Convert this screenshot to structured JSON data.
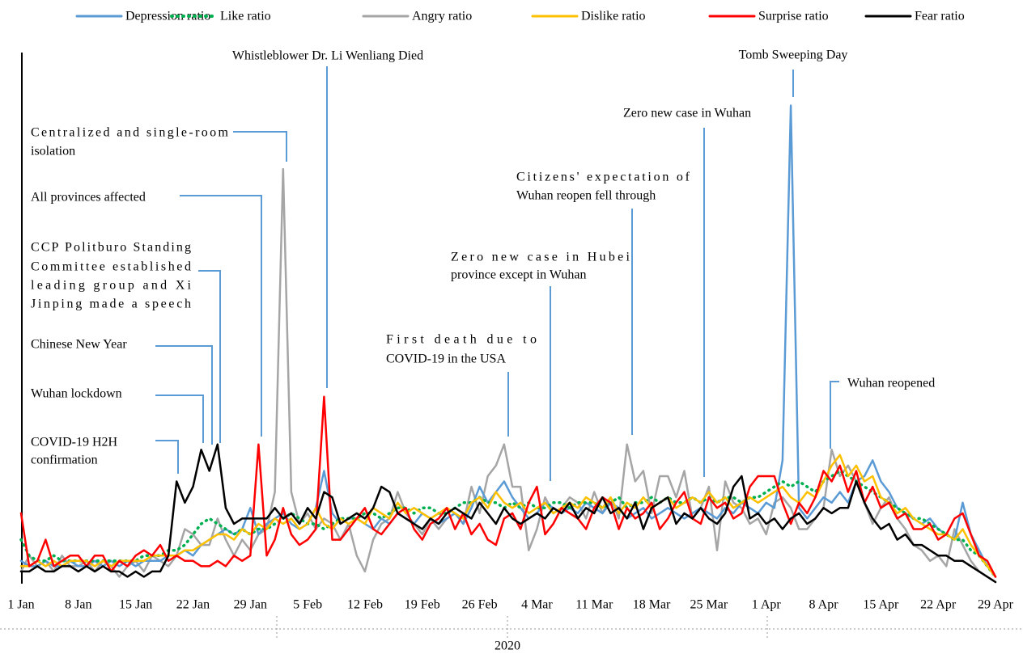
{
  "chart_data": {
    "type": "line",
    "xlabel": "2020",
    "x": [
      0,
      1,
      2,
      3,
      4,
      5,
      6,
      7,
      8,
      9,
      10,
      11,
      12,
      13,
      14,
      15,
      16,
      17,
      18,
      19,
      20,
      21,
      22,
      23,
      24,
      25,
      26,
      27,
      28,
      29,
      30,
      31,
      32,
      33,
      34,
      35,
      36,
      37,
      38,
      39,
      40,
      41,
      42,
      43,
      44,
      45,
      46,
      47,
      48,
      49,
      50,
      51,
      52,
      53,
      54,
      55,
      56,
      57,
      58,
      59,
      60,
      61,
      62,
      63,
      64,
      65,
      66,
      67,
      68,
      69,
      70,
      71,
      72,
      73,
      74,
      75,
      76,
      77,
      78,
      79,
      80,
      81,
      82,
      83,
      84,
      85,
      86,
      87,
      88,
      89,
      90,
      91,
      92,
      93,
      94,
      95,
      96,
      97,
      98,
      99,
      100,
      101,
      102,
      103,
      104,
      105,
      106,
      107,
      108,
      109,
      110,
      111,
      112,
      113,
      114,
      115,
      116,
      117,
      118,
      119
    ],
    "xlim": [
      0,
      119
    ],
    "xticks": [
      {
        "value": 0,
        "label": "1 Jan"
      },
      {
        "value": 7,
        "label": "8 Jan"
      },
      {
        "value": 14,
        "label": "15 Jan"
      },
      {
        "value": 21,
        "label": "22 Jan"
      },
      {
        "value": 28,
        "label": "29 Jan"
      },
      {
        "value": 35,
        "label": "5 Feb"
      },
      {
        "value": 42,
        "label": "12 Feb"
      },
      {
        "value": 49,
        "label": "19 Feb"
      },
      {
        "value": 56,
        "label": "26 Feb"
      },
      {
        "value": 63,
        "label": "4 Mar"
      },
      {
        "value": 70,
        "label": "11 Mar"
      },
      {
        "value": 77,
        "label": "18 Mar"
      },
      {
        "value": 84,
        "label": "25 Mar"
      },
      {
        "value": 91,
        "label": "1 Apr"
      },
      {
        "value": 98,
        "label": "8 Apr"
      },
      {
        "value": 105,
        "label": "15 Apr"
      },
      {
        "value": 112,
        "label": "22 Apr"
      },
      {
        "value": 119,
        "label": "29 Apr"
      }
    ],
    "ylim": [
      0,
      100
    ],
    "series": [
      {
        "name": "Depression ratio",
        "color": "#5b9bd5",
        "style": "solid",
        "values": [
          4,
          3,
          3,
          4,
          3,
          3,
          4,
          3,
          3,
          4,
          3,
          4,
          3,
          4,
          3,
          4,
          4,
          4,
          5,
          5,
          6,
          5,
          7,
          8,
          9,
          10,
          9,
          10,
          14,
          9,
          11,
          12,
          13,
          11,
          10,
          11,
          14,
          21,
          13,
          11,
          12,
          12,
          11,
          10,
          12,
          11,
          13,
          12,
          11,
          13,
          12,
          11,
          12,
          13,
          11,
          14,
          18,
          15,
          17,
          19,
          16,
          14,
          12,
          13,
          15,
          14,
          13,
          14,
          13,
          15,
          14,
          13,
          15,
          14,
          12,
          13,
          14,
          12,
          13,
          14,
          13,
          12,
          13,
          14,
          13,
          12,
          14,
          13,
          15,
          14,
          13,
          15,
          14,
          23,
          90,
          14,
          12,
          14,
          16,
          15,
          17,
          15,
          19,
          20,
          23,
          19,
          17,
          14,
          13,
          12,
          11,
          12,
          10,
          9,
          8,
          15,
          9,
          6,
          3,
          1
        ]
      },
      {
        "name": "Like ratio",
        "color": "#00b050",
        "style": "dotted",
        "values": [
          8,
          5,
          4,
          4,
          5,
          4,
          4,
          4,
          4,
          4,
          4,
          4,
          4,
          4,
          4,
          5,
          5,
          5,
          6,
          6,
          7,
          9,
          11,
          12,
          11,
          10,
          9,
          10,
          9,
          10,
          10,
          11,
          12,
          13,
          12,
          11,
          11,
          10,
          11,
          12,
          12,
          12,
          13,
          13,
          12,
          13,
          14,
          14,
          13,
          14,
          14,
          13,
          13,
          14,
          15,
          15,
          16,
          15,
          15,
          14,
          15,
          14,
          15,
          14,
          14,
          15,
          15,
          14,
          15,
          15,
          15,
          14,
          15,
          16,
          14,
          15,
          15,
          16,
          15,
          16,
          15,
          15,
          16,
          15,
          16,
          15,
          16,
          16,
          15,
          16,
          16,
          17,
          18,
          19,
          18,
          19,
          18,
          17,
          19,
          20,
          21,
          20,
          19,
          18,
          17,
          16,
          15,
          14,
          13,
          12,
          12,
          11,
          10,
          9,
          8,
          8,
          6,
          5,
          3,
          1
        ]
      },
      {
        "name": "Angry ratio",
        "color": "#a5a5a5",
        "style": "solid",
        "values": [
          2,
          5,
          3,
          4,
          2,
          5,
          3,
          3,
          4,
          2,
          4,
          3,
          1,
          3,
          4,
          2,
          5,
          4,
          3,
          5,
          10,
          9,
          7,
          7,
          12,
          8,
          5,
          8,
          6,
          9,
          10,
          17,
          78,
          17,
          11,
          13,
          10,
          12,
          11,
          8,
          11,
          5,
          2,
          8,
          11,
          12,
          17,
          13,
          11,
          9,
          12,
          10,
          12,
          13,
          11,
          18,
          13,
          20,
          22,
          26,
          18,
          18,
          6,
          10,
          16,
          13,
          14,
          16,
          15,
          12,
          17,
          13,
          16,
          12,
          26,
          19,
          21,
          13,
          20,
          20,
          16,
          21,
          12,
          14,
          18,
          6,
          19,
          15,
          14,
          11,
          12,
          9,
          15,
          16,
          14,
          10,
          10,
          12,
          14,
          25,
          20,
          22,
          19,
          15,
          11,
          14,
          16,
          12,
          10,
          7,
          6,
          4,
          5,
          3,
          10,
          7,
          4,
          2,
          1,
          0
        ]
      },
      {
        "name": "Dislike ratio",
        "color": "#ffc000",
        "style": "solid",
        "values": [
          3,
          3,
          4,
          3,
          4,
          3,
          4,
          4,
          4,
          3,
          4,
          3,
          4,
          4,
          4,
          4,
          5,
          5,
          5,
          5,
          6,
          6,
          7,
          8,
          9,
          9,
          8,
          10,
          9,
          11,
          10,
          12,
          11,
          12,
          10,
          11,
          14,
          11,
          10,
          12,
          11,
          12,
          11,
          14,
          13,
          12,
          15,
          13,
          14,
          13,
          12,
          13,
          14,
          13,
          12,
          15,
          16,
          14,
          17,
          15,
          14,
          15,
          13,
          14,
          15,
          13,
          14,
          15,
          14,
          16,
          15,
          14,
          16,
          13,
          15,
          14,
          16,
          14,
          15,
          16,
          14,
          15,
          16,
          15,
          17,
          15,
          16,
          14,
          15,
          16,
          15,
          16,
          17,
          18,
          16,
          15,
          17,
          16,
          19,
          22,
          24,
          20,
          22,
          19,
          20,
          16,
          15,
          13,
          14,
          12,
          11,
          10,
          9,
          9,
          8,
          10,
          7,
          5,
          3,
          1
        ]
      },
      {
        "name": "Surprise ratio",
        "color": "#ff0000",
        "style": "solid",
        "values": [
          13,
          3,
          4,
          8,
          3,
          4,
          5,
          5,
          3,
          5,
          5,
          2,
          4,
          3,
          5,
          6,
          5,
          7,
          4,
          5,
          4,
          4,
          3,
          3,
          4,
          3,
          5,
          4,
          5,
          26,
          5,
          8,
          14,
          9,
          7,
          8,
          10,
          35,
          8,
          8,
          10,
          12,
          14,
          10,
          9,
          11,
          13,
          14,
          10,
          8,
          11,
          12,
          14,
          10,
          13,
          9,
          11,
          8,
          7,
          12,
          13,
          10,
          15,
          18,
          9,
          11,
          14,
          13,
          12,
          10,
          14,
          16,
          15,
          10,
          14,
          12,
          13,
          15,
          10,
          12,
          15,
          17,
          12,
          11,
          16,
          14,
          15,
          12,
          13,
          18,
          20,
          20,
          20,
          15,
          11,
          15,
          13,
          16,
          21,
          19,
          22,
          17,
          21,
          15,
          18,
          14,
          15,
          12,
          13,
          10,
          10,
          11,
          8,
          9,
          12,
          13,
          9,
          5,
          4,
          1
        ]
      },
      {
        "name": "Fear ratio",
        "color": "#000000",
        "style": "solid",
        "values": [
          2,
          2,
          3,
          2,
          2,
          3,
          3,
          2,
          3,
          2,
          3,
          2,
          2,
          1,
          2,
          1,
          2,
          2,
          5,
          19,
          15,
          18,
          25,
          21,
          26,
          14,
          11,
          12,
          12,
          12,
          12,
          14,
          12,
          13,
          11,
          14,
          12,
          17,
          16,
          11,
          12,
          13,
          12,
          14,
          18,
          17,
          13,
          12,
          11,
          10,
          12,
          11,
          13,
          14,
          13,
          12,
          15,
          13,
          11,
          14,
          12,
          11,
          12,
          13,
          12,
          14,
          13,
          15,
          12,
          14,
          13,
          16,
          13,
          14,
          12,
          15,
          10,
          14,
          15,
          16,
          11,
          13,
          12,
          14,
          12,
          11,
          13,
          18,
          20,
          12,
          13,
          11,
          12,
          10,
          12,
          13,
          11,
          12,
          14,
          13,
          14,
          14,
          19,
          15,
          12,
          10,
          11,
          8,
          9,
          7,
          7,
          6,
          5,
          5,
          4,
          4,
          3,
          2,
          1,
          0
        ]
      }
    ],
    "annotations": [
      [
        "COVID-19 H2H",
        "confirmation"
      ],
      [
        "Wuhan lockdown"
      ],
      [
        "Chinese New Year"
      ],
      [
        "CCP Politburo Standing",
        "Committee established",
        "leading group and Xi",
        "Jinping made a speech"
      ],
      [
        "All provinces affected"
      ],
      [
        "Centralized and single-room",
        "isolation"
      ],
      [
        "Whistleblower Dr. Li Wenliang Died"
      ],
      [
        "First death due to",
        "COVID-19 in the USA"
      ],
      [
        "Zero new case in Hubei",
        "province except in Wuhan"
      ],
      [
        "Citizens' expectation of",
        "Wuhan reopen fell through"
      ],
      [
        "Zero new case in Wuhan"
      ],
      [
        "Tomb Sweeping Day"
      ],
      [
        "Wuhan reopened"
      ]
    ]
  }
}
